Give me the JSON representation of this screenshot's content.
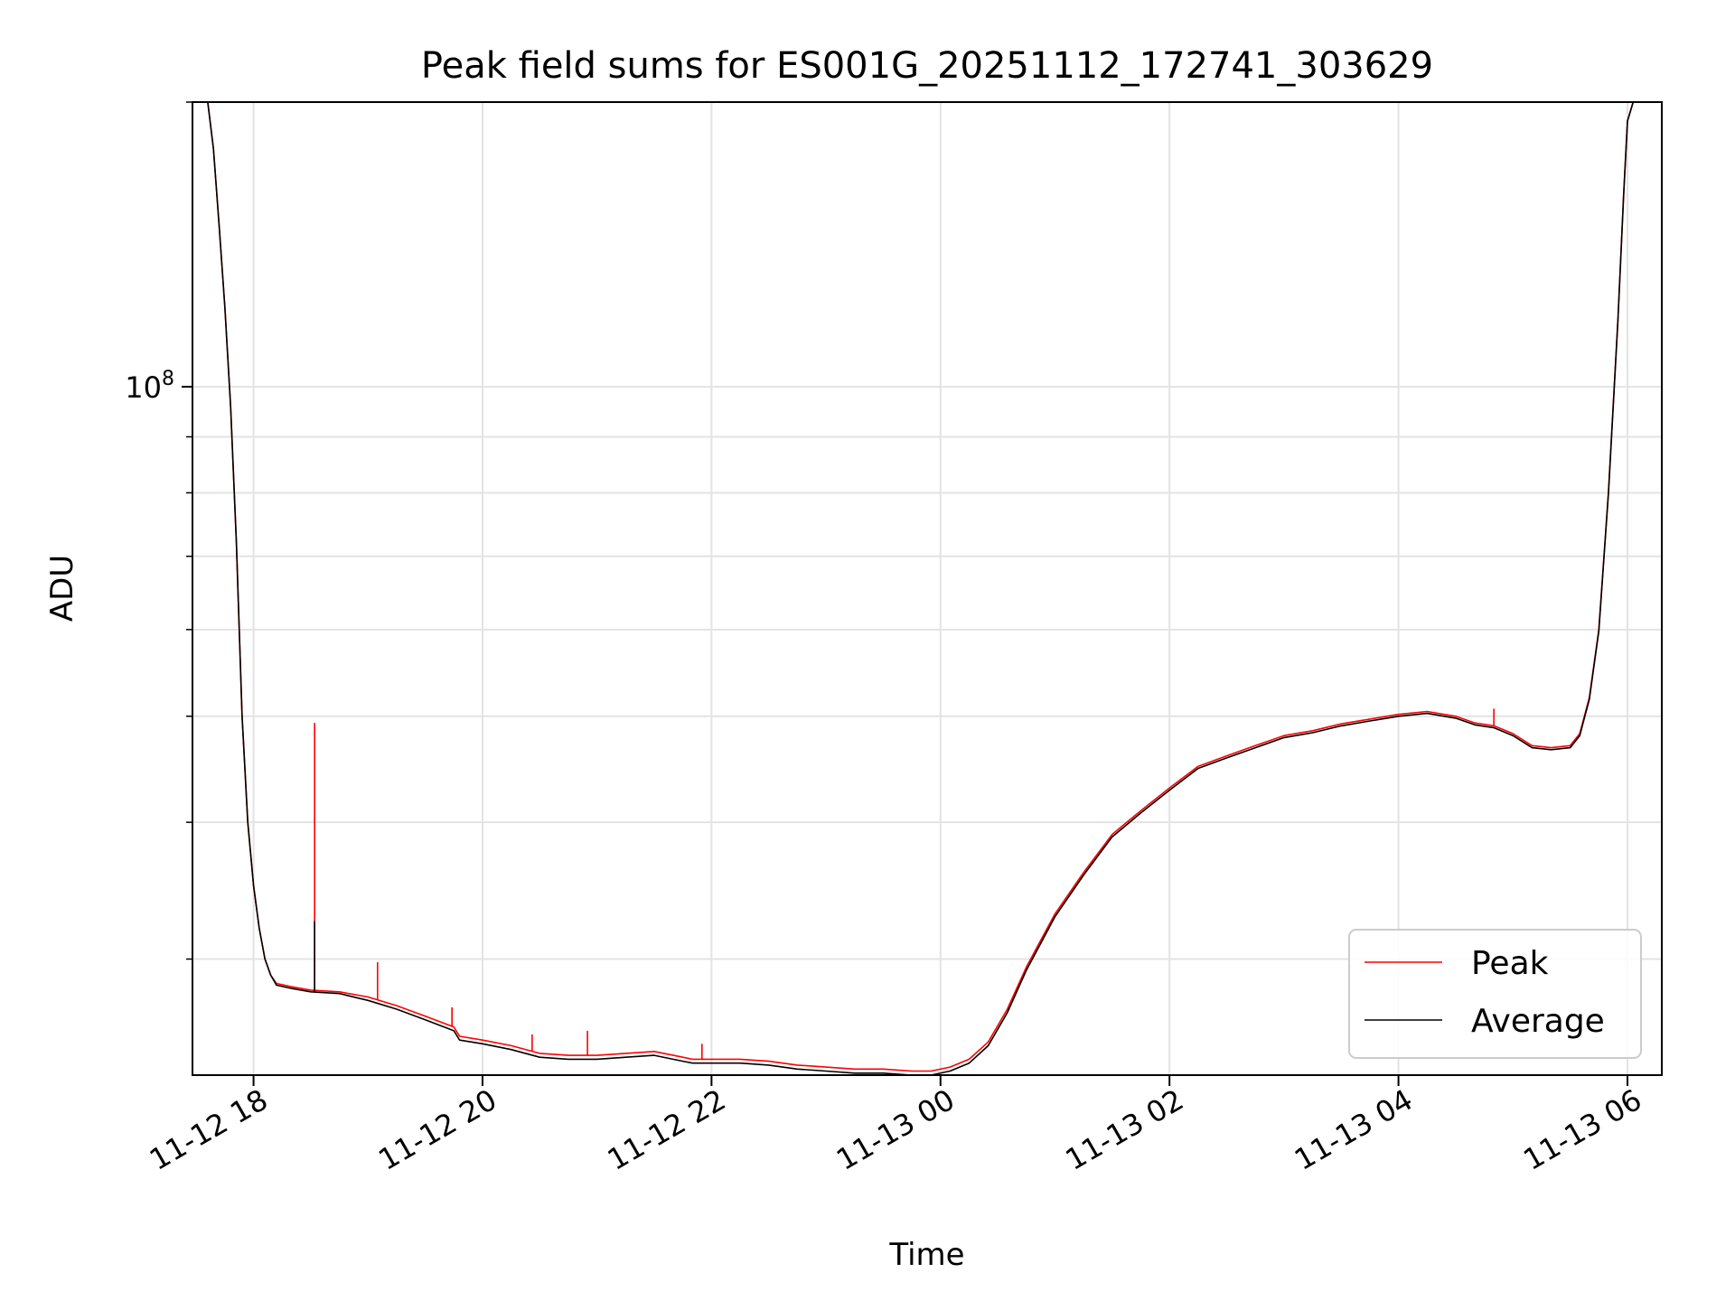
{
  "chart_data": {
    "type": "line",
    "title": "Peak field sums for ES001G_20251112_172741_303629",
    "xlabel": "Time",
    "ylabel": "ADU",
    "y_scale": "log",
    "x_range": [
      "2025-11-12T17:28",
      "2025-11-13T06:18"
    ],
    "ylim": [
      23500000,
      182000000
    ],
    "x_ticks": [
      {
        "value": "2025-11-12T18:00",
        "label": "11-12 18"
      },
      {
        "value": "2025-11-12T20:00",
        "label": "11-12 20"
      },
      {
        "value": "2025-11-12T22:00",
        "label": "11-12 22"
      },
      {
        "value": "2025-11-13T00:00",
        "label": "11-13 00"
      },
      {
        "value": "2025-11-13T02:00",
        "label": "11-13 02"
      },
      {
        "value": "2025-11-13T04:00",
        "label": "11-13 04"
      },
      {
        "value": "2025-11-13T06:00",
        "label": "11-13 06"
      }
    ],
    "y_major_ticks": [
      {
        "value": 100000000,
        "label_base": "10",
        "label_exp": "8"
      }
    ],
    "y_minor_ticks": [
      30000000,
      40000000,
      50000000,
      60000000,
      70000000,
      80000000,
      90000000,
      200000000
    ],
    "grid": true,
    "legend_position": "lower-right",
    "x": [
      "2025-11-12T17:36",
      "2025-11-12T17:39",
      "2025-11-12T17:42",
      "2025-11-12T17:45",
      "2025-11-12T17:48",
      "2025-11-12T17:51",
      "2025-11-12T17:54",
      "2025-11-12T17:57",
      "2025-11-12T18:00",
      "2025-11-12T18:03",
      "2025-11-12T18:06",
      "2025-11-12T18:09",
      "2025-11-12T18:12",
      "2025-11-12T18:20",
      "2025-11-12T18:30",
      "2025-11-12T18:45",
      "2025-11-12T19:00",
      "2025-11-12T19:15",
      "2025-11-12T19:30",
      "2025-11-12T19:45",
      "2025-11-12T19:48",
      "2025-11-12T20:00",
      "2025-11-12T20:15",
      "2025-11-12T20:30",
      "2025-11-12T20:45",
      "2025-11-12T21:00",
      "2025-11-12T21:15",
      "2025-11-12T21:30",
      "2025-11-12T21:45",
      "2025-11-12T21:50",
      "2025-11-12T22:00",
      "2025-11-12T22:15",
      "2025-11-12T22:30",
      "2025-11-12T22:45",
      "2025-11-12T23:00",
      "2025-11-12T23:15",
      "2025-11-12T23:30",
      "2025-11-12T23:45",
      "2025-11-12T23:55",
      "2025-11-13T00:05",
      "2025-11-13T00:15",
      "2025-11-13T00:25",
      "2025-11-13T00:35",
      "2025-11-13T00:45",
      "2025-11-13T01:00",
      "2025-11-13T01:15",
      "2025-11-13T01:30",
      "2025-11-13T01:45",
      "2025-11-13T02:00",
      "2025-11-13T02:15",
      "2025-11-13T02:30",
      "2025-11-13T02:45",
      "2025-11-13T03:00",
      "2025-11-13T03:15",
      "2025-11-13T03:30",
      "2025-11-13T03:45",
      "2025-11-13T04:00",
      "2025-11-13T04:15",
      "2025-11-13T04:30",
      "2025-11-13T04:40",
      "2025-11-13T04:50",
      "2025-11-13T05:00",
      "2025-11-13T05:10",
      "2025-11-13T05:20",
      "2025-11-13T05:30",
      "2025-11-13T05:35",
      "2025-11-13T05:40",
      "2025-11-13T05:45",
      "2025-11-13T05:50",
      "2025-11-13T05:55",
      "2025-11-13T05:58",
      "2025-11-13T06:00",
      "2025-11-13T06:03"
    ],
    "series": [
      {
        "name": "Peak",
        "color": "#ff0000",
        "values": [
          184000000,
          165000000,
          140000000,
          118000000,
          96000000,
          72000000,
          50000000,
          40000000,
          35000000,
          32000000,
          30000000,
          29000000,
          28500000,
          28300000,
          28100000,
          28000000,
          27700000,
          27200000,
          26600000,
          26000000,
          25500000,
          25300000,
          25000000,
          24600000,
          24500000,
          24500000,
          24600000,
          24700000,
          24400000,
          24300000,
          24300000,
          24300000,
          24200000,
          24000000,
          23900000,
          23800000,
          23800000,
          23700000,
          23700000,
          23900000,
          24300000,
          25200000,
          27000000,
          29500000,
          33000000,
          36000000,
          39000000,
          41000000,
          43000000,
          45000000,
          46000000,
          47000000,
          48000000,
          48500000,
          49200000,
          49700000,
          50200000,
          50500000,
          50000000,
          49300000,
          49000000,
          48200000,
          47000000,
          46800000,
          47000000,
          48200000,
          52000000,
          60000000,
          80000000,
          115000000,
          150000000,
          175000000,
          184000000
        ]
      },
      {
        "name": "Average",
        "color": "#000000",
        "values": [
          184000000,
          165000000,
          140000000,
          118000000,
          96000000,
          72000000,
          50000000,
          40000000,
          35000000,
          32000000,
          30000000,
          29000000,
          28400000,
          28200000,
          28000000,
          27900000,
          27500000,
          27000000,
          26400000,
          25800000,
          25300000,
          25100000,
          24800000,
          24400000,
          24300000,
          24300000,
          24400000,
          24500000,
          24200000,
          24100000,
          24100000,
          24100000,
          24000000,
          23800000,
          23700000,
          23600000,
          23600000,
          23500000,
          23500000,
          23700000,
          24100000,
          25000000,
          26800000,
          29300000,
          32800000,
          35800000,
          38800000,
          40800000,
          42800000,
          44800000,
          45800000,
          46800000,
          47800000,
          48300000,
          49000000,
          49500000,
          50000000,
          50300000,
          49800000,
          49100000,
          48800000,
          48000000,
          46800000,
          46600000,
          46800000,
          48000000,
          51800000,
          59800000,
          79800000,
          114800000,
          149800000,
          174800000,
          184000000
        ]
      }
    ],
    "spikes": [
      {
        "series": "Peak",
        "x": "2025-11-12T18:32",
        "y": 49300000
      },
      {
        "series": "Average",
        "x": "2025-11-12T18:32",
        "y": 32500000
      },
      {
        "series": "Peak",
        "x": "2025-11-12T19:05",
        "y": 29800000
      },
      {
        "series": "Peak",
        "x": "2025-11-12T19:44",
        "y": 27100000
      },
      {
        "series": "Peak",
        "x": "2025-11-12T20:26",
        "y": 25600000
      },
      {
        "series": "Peak",
        "x": "2025-11-12T20:55",
        "y": 25800000
      },
      {
        "series": "Peak",
        "x": "2025-11-12T21:55",
        "y": 25100000
      },
      {
        "series": "Peak",
        "x": "2025-11-13T04:50",
        "y": 50800000
      }
    ]
  }
}
